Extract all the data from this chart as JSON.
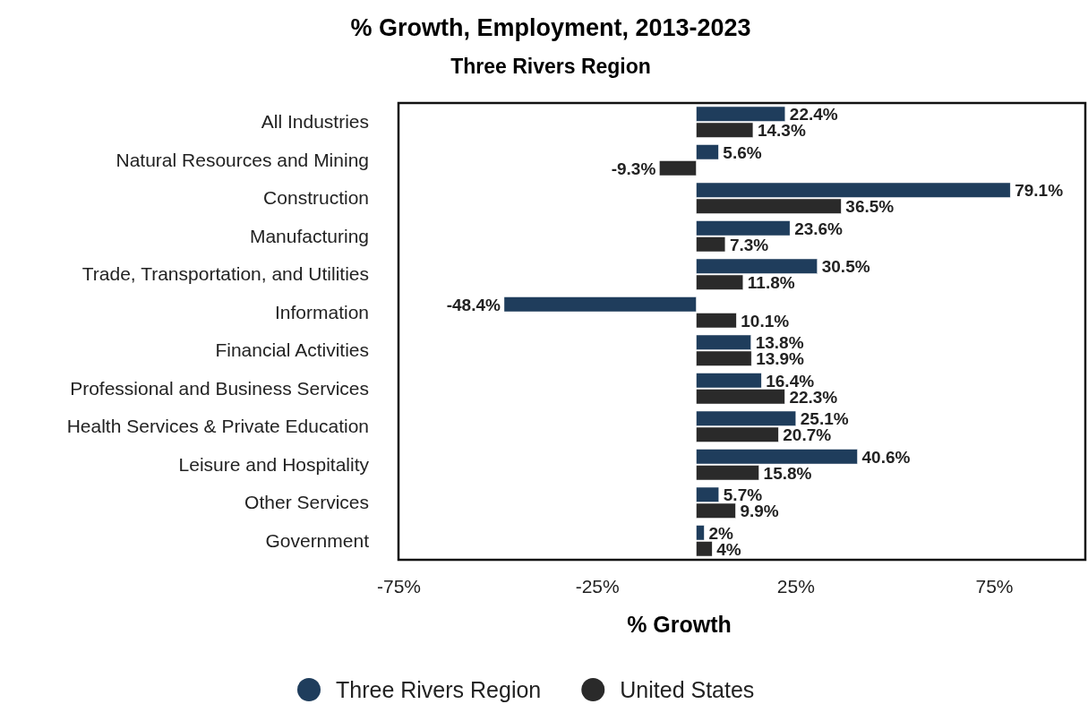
{
  "chart_data": {
    "type": "bar",
    "orientation": "horizontal",
    "title": "% Growth, Employment, 2013-2023",
    "subtitle": "Three Rivers Region",
    "xlabel": "% Growth",
    "categories": [
      "All Industries",
      "Natural Resources and Mining",
      "Construction",
      "Manufacturing",
      "Trade, Transportation, and Utilities",
      "Information",
      "Financial Activities",
      "Professional and Business Services",
      "Health Services & Private Education",
      "Leisure and Hospitality",
      "Other Services",
      "Government"
    ],
    "series": [
      {
        "name": "Three Rivers Region",
        "color": "#1f3d5c",
        "values": [
          22.4,
          5.6,
          79.1,
          23.6,
          30.5,
          -48.4,
          13.8,
          16.4,
          25.1,
          40.6,
          5.7,
          2
        ],
        "value_labels": [
          "22.4%",
          "5.6%",
          "79.1%",
          "23.6%",
          "30.5%",
          "-48.4%",
          "13.8%",
          "16.4%",
          "25.1%",
          "40.6%",
          "5.7%",
          "2%"
        ]
      },
      {
        "name": "United States",
        "color": "#2a2a2a",
        "values": [
          14.3,
          -9.3,
          36.5,
          7.3,
          11.8,
          10.1,
          13.9,
          22.3,
          20.7,
          15.8,
          9.9,
          4
        ],
        "value_labels": [
          "14.3%",
          "-9.3%",
          "36.5%",
          "7.3%",
          "11.8%",
          "10.1%",
          "13.9%",
          "22.3%",
          "20.7%",
          "15.8%",
          "9.9%",
          "4%"
        ]
      }
    ],
    "xlim": [
      -75,
      98
    ],
    "xticks": [
      {
        "value": -75,
        "label": "-75%"
      },
      {
        "value": -25,
        "label": "-25%"
      },
      {
        "value": 25,
        "label": "25%"
      },
      {
        "value": 75,
        "label": "75%"
      }
    ],
    "grid": false,
    "legend": "bottom"
  }
}
